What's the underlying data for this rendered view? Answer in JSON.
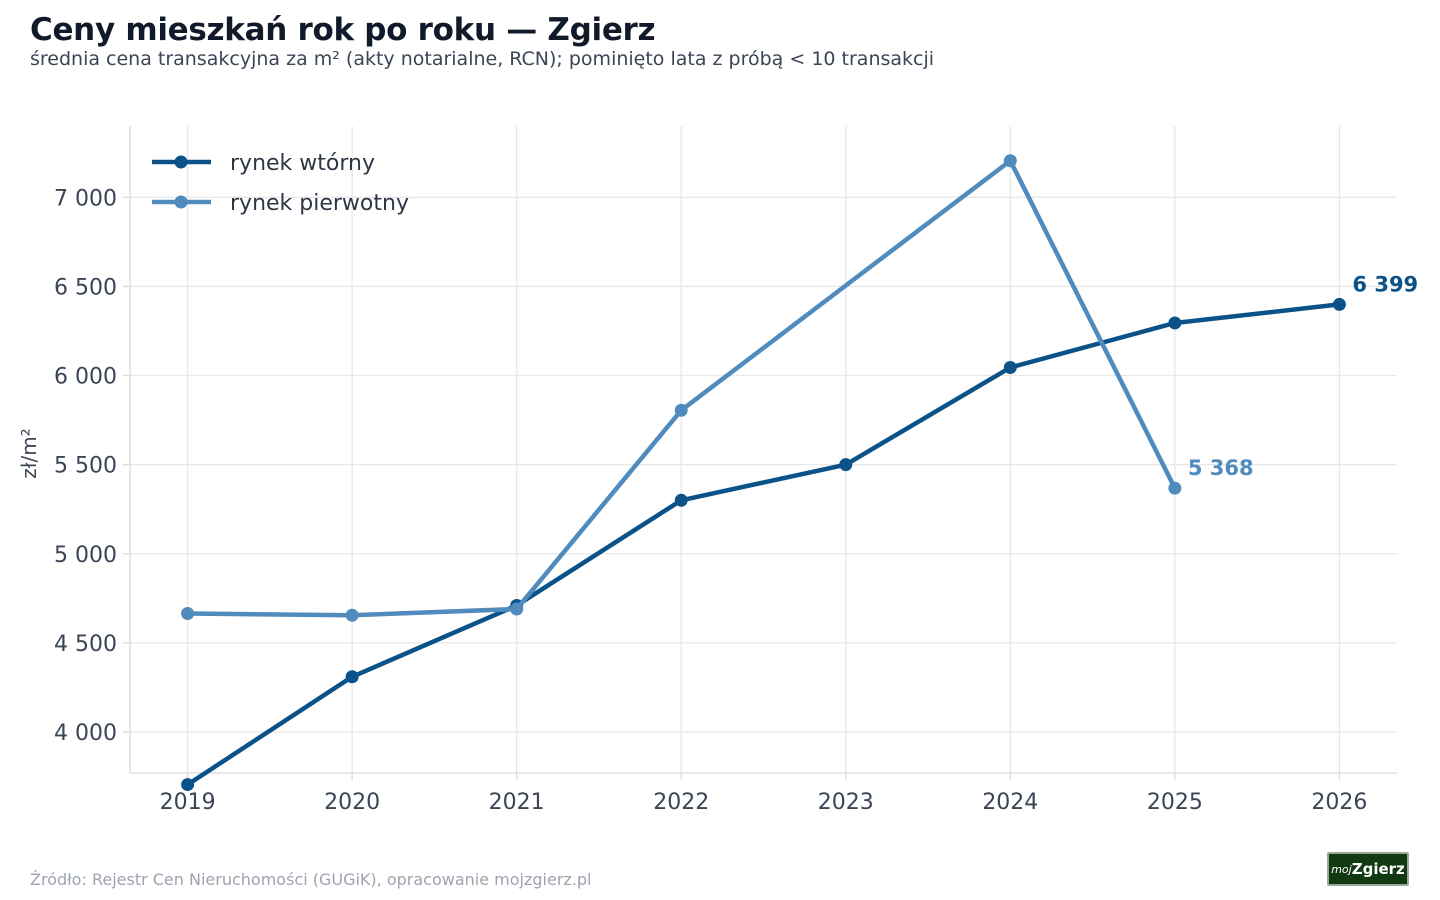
{
  "header": {
    "title": "Ceny mieszkań rok po roku — Zgierz",
    "subtitle": "średnia cena transakcyjna za m² (akty notarialne, RCN); pominięto lata z próbą < 10 transakcji"
  },
  "footer": {
    "source": "Źródło: Rejestr Cen Nieruchomości (GUGiK), opracowanie mojzgierz.pl",
    "logo_prefix": "moj",
    "logo_main": "Zgierz"
  },
  "colors": {
    "secondary": "#0b5289",
    "primary_market": "#4f8bbd",
    "grid": "#e8e8e8",
    "axis": "#d9d9d9"
  },
  "chart_data": {
    "type": "line",
    "title": "Ceny mieszkań rok po roku — Zgierz",
    "ylabel": "zł/m²",
    "xlabel": "",
    "x": [
      2019,
      2020,
      2021,
      2022,
      2023,
      2024,
      2025,
      2026
    ],
    "xlim": [
      2018.65,
      2026.35
    ],
    "ylim": [
      3770,
      7400
    ],
    "yticks": [
      4000,
      4500,
      5000,
      5500,
      6000,
      6500,
      7000
    ],
    "ytick_labels": [
      "4 000",
      "4 500",
      "5 000",
      "5 500",
      "6 000",
      "6 500",
      "7 000"
    ],
    "xtick_labels": [
      "2019",
      "2020",
      "2021",
      "2022",
      "2023",
      "2024",
      "2025",
      "2026"
    ],
    "grid": true,
    "legend_position": "top-left",
    "series": [
      {
        "name": "rynek wtórny",
        "color": "#0b5289",
        "x": [
          2019,
          2020,
          2021,
          2022,
          2023,
          2024,
          2025,
          2026
        ],
        "values": [
          3705,
          4310,
          4710,
          5300,
          5500,
          6045,
          6295,
          6399
        ],
        "end_label": "6 399"
      },
      {
        "name": "rynek pierwotny",
        "color": "#4f8bbd",
        "x": [
          2019,
          2020,
          2021,
          2022,
          2024,
          2025
        ],
        "values": [
          4665,
          4655,
          4690,
          5805,
          7205,
          5368
        ],
        "end_label": "5 368"
      }
    ]
  }
}
